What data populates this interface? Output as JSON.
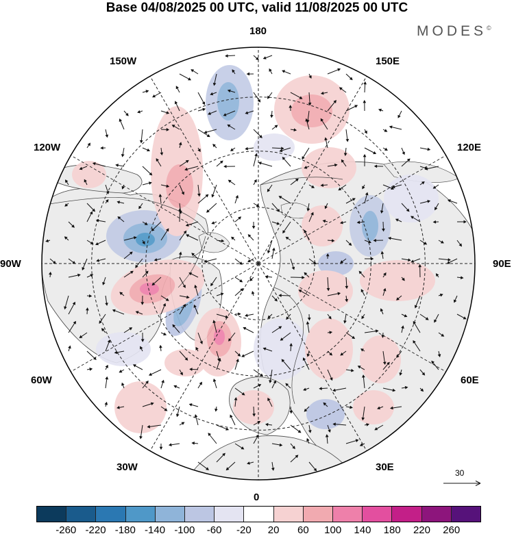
{
  "header": {
    "title": "Base 04/08/2025 00 UTC, valid 11/08/2025 00 UTC",
    "brand": "MODES",
    "brand_mark": "©"
  },
  "map": {
    "projection": "north-polar-stereographic",
    "longitude_labels": {
      "top": "180",
      "bottom": "0",
      "left": "90W",
      "right": "90E",
      "upper_left_1": "150W",
      "upper_left_2": "120W",
      "upper_right_1": "150E",
      "upper_right_2": "120E",
      "lower_left_1": "60W",
      "lower_left_2": "30W",
      "lower_right_1": "60E",
      "lower_right_2": "30E"
    },
    "reference_vector": "30",
    "colors": {
      "land": "#ececec",
      "ocean": "#ffffff",
      "coast": "#444444",
      "grid": "#222222",
      "arrow": "#111111"
    }
  },
  "colorbar": {
    "ticks": [
      "-260",
      "-220",
      "-180",
      "-140",
      "-100",
      "-60",
      "-20",
      "20",
      "60",
      "100",
      "140",
      "180",
      "220",
      "260"
    ],
    "colors": [
      "#0c3a5c",
      "#1a5b8c",
      "#2b78b2",
      "#4f98c8",
      "#8fb4d9",
      "#bcc6e3",
      "#e4e4f2",
      "#ffffff",
      "#f6d2d2",
      "#f1aab0",
      "#ee80aa",
      "#e34f9f",
      "#c31f88",
      "#8d157c",
      "#56127a"
    ]
  }
}
